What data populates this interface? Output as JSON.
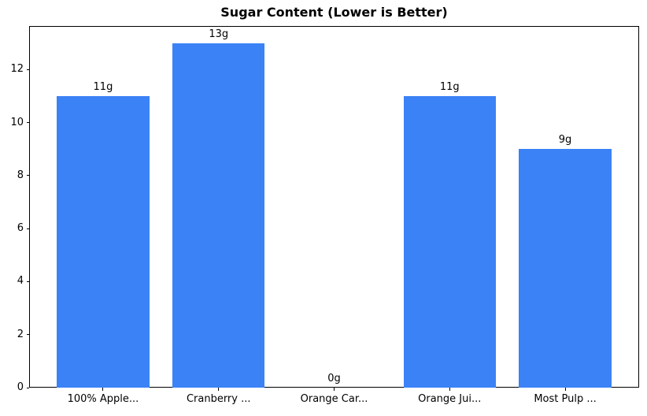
{
  "chart_data": {
    "type": "bar",
    "title": "Sugar Content (Lower is Better)",
    "categories": [
      "100% Apple...",
      "Cranberry ...",
      "Orange Car...",
      "Orange Jui...",
      "Most Pulp ..."
    ],
    "values": [
      11,
      13,
      0,
      11,
      9
    ],
    "bar_labels": [
      "11g",
      "13g",
      "0g",
      "11g",
      "9g"
    ],
    "xlabel": "",
    "ylabel": "",
    "ylim": [
      0,
      13.65
    ],
    "yticks": [
      0,
      2,
      4,
      6,
      8,
      10,
      12
    ],
    "bar_color": "#3b82f6",
    "grid": false,
    "legend": null
  }
}
